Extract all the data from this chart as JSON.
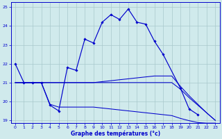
{
  "title": "Graphe des températures (°c)",
  "bg_color": "#d0eaec",
  "grid_color": "#a8c8cc",
  "line_color": "#0000cc",
  "xlim": [
    -0.5,
    23.5
  ],
  "ylim": [
    18.85,
    25.25
  ],
  "xticks": [
    0,
    1,
    2,
    3,
    4,
    5,
    6,
    7,
    8,
    9,
    10,
    11,
    12,
    13,
    14,
    15,
    16,
    17,
    18,
    19,
    20,
    21,
    22,
    23
  ],
  "yticks": [
    19,
    20,
    21,
    22,
    23,
    24,
    25
  ],
  "hours": [
    0,
    1,
    2,
    3,
    4,
    5,
    6,
    7,
    8,
    9,
    10,
    11,
    12,
    13,
    14,
    15,
    16,
    17,
    18,
    19,
    20,
    21,
    22,
    23
  ],
  "line1_x": [
    0,
    1,
    2,
    3,
    4,
    5,
    6,
    7,
    8,
    9,
    10,
    11,
    12,
    13,
    14,
    15,
    16,
    17,
    19,
    20,
    21
  ],
  "line1_y": [
    22,
    21,
    21,
    21,
    19.8,
    19.5,
    21.8,
    21.65,
    23.3,
    23.1,
    24.2,
    24.6,
    24.35,
    24.9,
    24.2,
    24.1,
    23.2,
    22.5,
    20.7,
    19.6,
    19.3
  ],
  "line2_x": [
    0,
    1,
    2,
    3,
    4,
    5,
    6,
    7,
    8,
    9,
    10,
    11,
    12,
    13,
    14,
    15,
    16,
    17,
    18,
    19,
    20,
    21,
    22,
    23
  ],
  "line2_y": [
    21.0,
    21.0,
    21.0,
    21.0,
    21.0,
    21.0,
    21.0,
    21.0,
    21.0,
    21.0,
    21.05,
    21.1,
    21.15,
    21.2,
    21.25,
    21.3,
    21.35,
    21.35,
    21.35,
    20.8,
    20.3,
    19.85,
    19.4,
    19.0
  ],
  "line3_x": [
    0,
    1,
    2,
    3,
    4,
    5,
    6,
    7,
    8,
    9,
    10,
    11,
    12,
    13,
    14,
    15,
    16,
    17,
    18,
    19,
    20,
    21,
    22,
    23
  ],
  "line3_y": [
    21.0,
    21.0,
    21.0,
    21.0,
    19.85,
    19.7,
    19.7,
    19.7,
    19.7,
    19.7,
    19.65,
    19.6,
    19.55,
    19.5,
    19.45,
    19.4,
    19.35,
    19.3,
    19.25,
    19.1,
    18.98,
    18.88,
    18.85,
    18.85
  ],
  "line4_x": [
    0,
    1,
    2,
    3,
    4,
    5,
    6,
    7,
    8,
    9,
    10,
    11,
    12,
    13,
    14,
    15,
    16,
    17,
    18,
    19,
    20,
    21,
    22,
    23
  ],
  "line4_y": [
    21.0,
    21.0,
    21.0,
    21.0,
    21.0,
    21.0,
    21.0,
    21.0,
    21.0,
    21.0,
    21.0,
    21.0,
    21.0,
    21.0,
    21.0,
    21.0,
    21.0,
    21.0,
    21.0,
    20.65,
    20.2,
    19.8,
    19.4,
    19.0
  ]
}
